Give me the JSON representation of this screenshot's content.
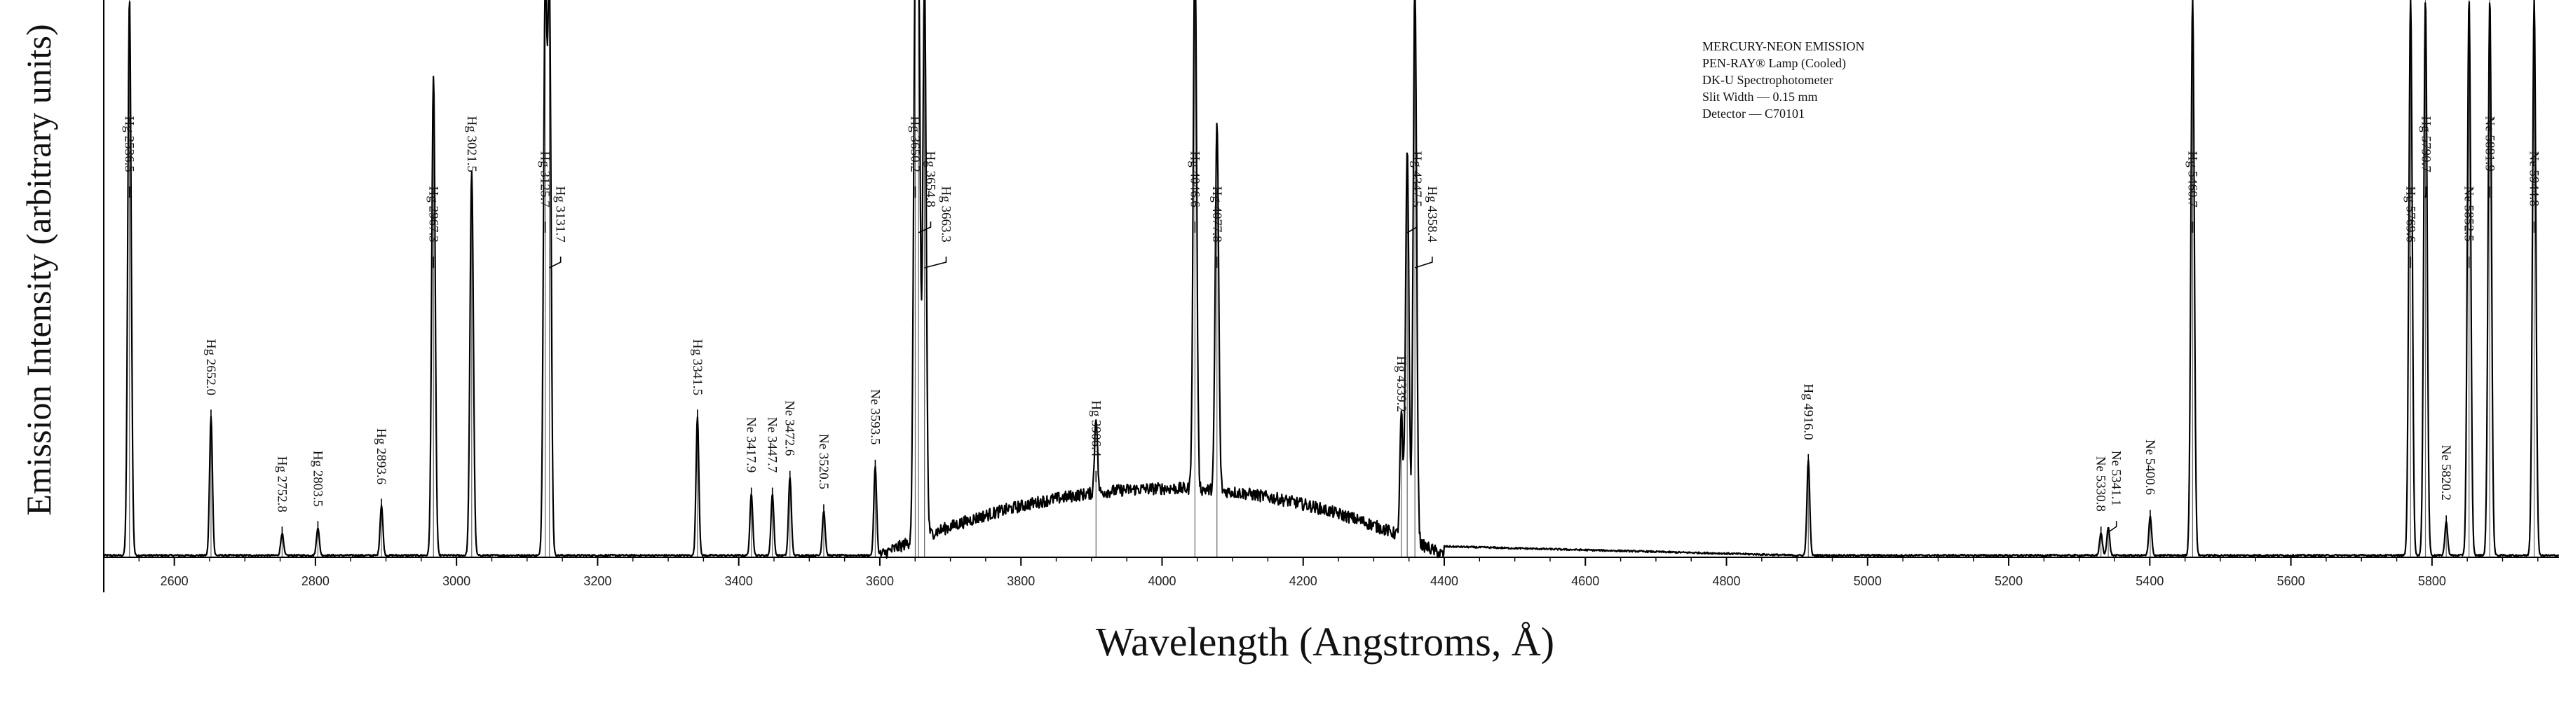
{
  "chart_data": {
    "type": "line",
    "title": "",
    "xlabel": "Wavelength (Angstroms, Å)",
    "ylabel": "Emission Intensity (arbitrary units)",
    "xlim": [
      2500,
      5980
    ],
    "ylim": [
      0,
      100
    ],
    "grid": false,
    "legend": "none",
    "x_ticks": [
      2600,
      2800,
      3000,
      3200,
      3400,
      3600,
      3800,
      4000,
      4200,
      4400,
      4600,
      4800,
      5000,
      5200,
      5400,
      5600,
      5800
    ],
    "info_box": {
      "placement": "top-right",
      "lines": [
        "MERCURY-NEON EMISSION",
        "PEN-RAY® Lamp (Cooled)",
        "DK-U Spectrophotometer",
        "Slit Width — 0.15 mm",
        "Detector — C70101"
      ]
    },
    "continuum": {
      "note_free_peaks": true,
      "range": [
        3600,
        4400
      ],
      "center": 4010,
      "peak_intensity": 12
    },
    "lines": [
      {
        "label": "Hg 2536.5",
        "x": 2536.5,
        "intensity": 100
      },
      {
        "label": "Hg 2652.0",
        "x": 2652.0,
        "intensity": 25
      },
      {
        "label": "Hg 2752.8",
        "x": 2752.8,
        "intensity": 4
      },
      {
        "label": "Hg 2803.5",
        "x": 2803.5,
        "intensity": 5
      },
      {
        "label": "Hg 2893.6",
        "x": 2893.6,
        "intensity": 9
      },
      {
        "label": "Hg 2967.3",
        "x": 2967.3,
        "intensity": 86
      },
      {
        "label": "Hg 3021.5",
        "x": 3021.5,
        "intensity": 69
      },
      {
        "label": "Hg 3125.7",
        "x": 3125.7,
        "intensity": 100
      },
      {
        "label": "Hg 3131.7",
        "x": 3131.7,
        "intensity": 100
      },
      {
        "label": "Hg 3341.5",
        "x": 3341.5,
        "intensity": 25
      },
      {
        "label": "Ne 3417.9",
        "x": 3417.9,
        "intensity": 11
      },
      {
        "label": "Ne 3447.7",
        "x": 3447.7,
        "intensity": 11
      },
      {
        "label": "Ne 3472.6",
        "x": 3472.6,
        "intensity": 14
      },
      {
        "label": "Ne 3520.5",
        "x": 3520.5,
        "intensity": 8
      },
      {
        "label": "Ne 3593.5",
        "x": 3593.5,
        "intensity": 16
      },
      {
        "label": "Hg 3650.2",
        "x": 3650.2,
        "intensity": 100
      },
      {
        "label": "Hg 3654.8",
        "x": 3654.8,
        "intensity": 100
      },
      {
        "label": "Hg 3663.3",
        "x": 3663.3,
        "intensity": 100
      },
      {
        "label": "Hg 3906.4",
        "x": 3906.4,
        "intensity": 14
      },
      {
        "label": "Hg 4046.6",
        "x": 4046.6,
        "intensity": 100
      },
      {
        "label": "Hg 4077.8",
        "x": 4077.8,
        "intensity": 66
      },
      {
        "label": "Hg 4339.2",
        "x": 4339.2,
        "intensity": 22
      },
      {
        "label": "Hg 4347.5",
        "x": 4347.5,
        "intensity": 70
      },
      {
        "label": "Hg 4358.4",
        "x": 4358.4,
        "intensity": 100
      },
      {
        "label": "Hg 4916.0",
        "x": 4916.0,
        "intensity": 17
      },
      {
        "label": "Ne 5330.8",
        "x": 5330.8,
        "intensity": 4
      },
      {
        "label": "Ne 5341.1",
        "x": 5341.1,
        "intensity": 5
      },
      {
        "label": "Ne 5400.6",
        "x": 5400.6,
        "intensity": 7
      },
      {
        "label": "Hg 5460.7",
        "x": 5460.7,
        "intensity": 100
      },
      {
        "label": "Hg 5769.6",
        "x": 5769.6,
        "intensity": 100
      },
      {
        "label": "Hg 5790.7",
        "x": 5790.7,
        "intensity": 100
      },
      {
        "label": "Ne 5820.2",
        "x": 5820.2,
        "intensity": 6
      },
      {
        "label": "Ne 5852.5",
        "x": 5852.5,
        "intensity": 100
      },
      {
        "label": "Ne 5881.9",
        "x": 5881.9,
        "intensity": 100
      },
      {
        "label": "Ne 5944.8",
        "x": 5944.8,
        "intensity": 100
      }
    ]
  }
}
